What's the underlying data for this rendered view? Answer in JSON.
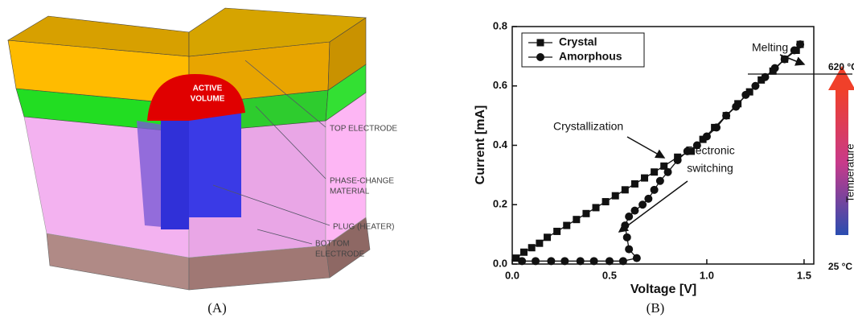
{
  "panel_a": {
    "caption": "(A)",
    "labels": {
      "active_volume": [
        "ACTIVE",
        "VOLUME"
      ],
      "top_electrode": "TOP ELECTRODE",
      "phase_change": [
        "PHASE-CHANGE",
        "MATERIAL"
      ],
      "plug": "PLUG (HEATER)",
      "bottom_electrode": [
        "BOTTOM",
        "ELECTRODE"
      ]
    }
  },
  "chart_data": {
    "type": "line",
    "caption": "(B)",
    "x_label": "Voltage [V]",
    "y_label": "Current [mA]",
    "xlim": [
      0,
      1.55
    ],
    "ylim": [
      0,
      0.8
    ],
    "xticks": [
      {
        "value": 0,
        "label": "0.0"
      },
      0.5,
      {
        "value": 1,
        "label": "1.0"
      },
      1.5
    ],
    "yticks": [
      {
        "value": 0,
        "label": "0.0"
      },
      0.2,
      0.4,
      0.6,
      0.8
    ],
    "legend": "top-left",
    "series": [
      {
        "name": "Crystal",
        "marker": "square",
        "color": "#111111",
        "x": [
          0.02,
          0.06,
          0.1,
          0.14,
          0.18,
          0.23,
          0.28,
          0.33,
          0.38,
          0.43,
          0.48,
          0.53,
          0.58,
          0.63,
          0.68,
          0.73,
          0.78,
          0.85,
          0.92,
          0.98,
          1.04,
          1.1,
          1.16,
          1.22,
          1.28,
          1.34,
          1.4,
          1.46,
          1.48
        ],
        "values": [
          0.02,
          0.04,
          0.055,
          0.07,
          0.09,
          0.11,
          0.13,
          0.15,
          0.17,
          0.19,
          0.21,
          0.23,
          0.25,
          0.27,
          0.29,
          0.31,
          0.33,
          0.36,
          0.38,
          0.42,
          0.46,
          0.5,
          0.54,
          0.58,
          0.62,
          0.65,
          0.69,
          0.72,
          0.74
        ]
      },
      {
        "name": "Amorphous",
        "marker": "circle",
        "color": "#111111",
        "x": [
          0.05,
          0.12,
          0.2,
          0.27,
          0.35,
          0.42,
          0.5,
          0.57,
          0.64,
          0.6,
          0.59,
          0.58,
          0.6,
          0.63,
          0.67,
          0.7,
          0.73,
          0.76,
          0.8,
          0.85,
          0.9,
          0.95,
          1.0,
          1.05,
          1.1,
          1.15,
          1.2,
          1.25,
          1.3,
          1.35,
          1.4,
          1.45,
          1.48
        ],
        "values": [
          0.01,
          0.01,
          0.01,
          0.01,
          0.01,
          0.01,
          0.01,
          0.01,
          0.02,
          0.05,
          0.09,
          0.13,
          0.16,
          0.18,
          0.2,
          0.22,
          0.25,
          0.28,
          0.31,
          0.35,
          0.38,
          0.4,
          0.43,
          0.46,
          0.5,
          0.53,
          0.57,
          0.6,
          0.63,
          0.66,
          0.69,
          0.72,
          0.74
        ]
      }
    ],
    "reference_line": {
      "y": 0.64,
      "label": "620 °C"
    },
    "annotations": {
      "melting": "Melting",
      "crystallization": "Crystallization",
      "switching": [
        "Electronic",
        "switching"
      ]
    },
    "colorbar": {
      "title": "Temperature",
      "low_label": "25 °C"
    }
  }
}
